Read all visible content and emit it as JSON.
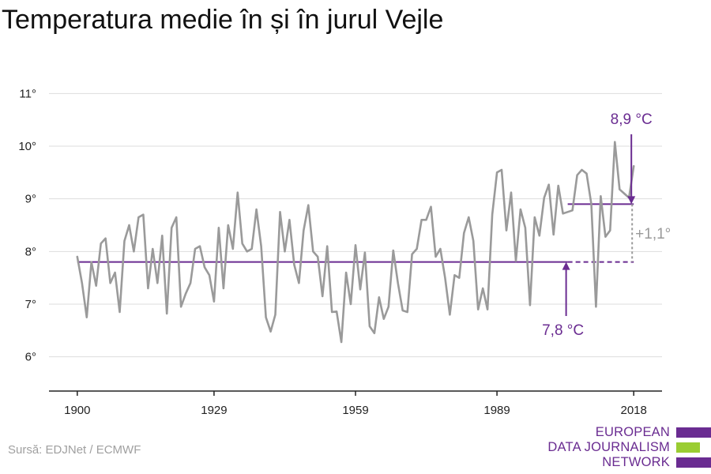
{
  "title": "Temperatura medie în și în jurul Vejle",
  "source": "Sursă: EDJNet / ECMWF",
  "logo": {
    "line1": "EUROPEAN",
    "line2": "DATA JOURNALISM",
    "line3": "NETWORK",
    "colors": [
      "#6a2c91",
      "#9acd32",
      "#6a2c91"
    ]
  },
  "colors": {
    "series": "#9a9a9a",
    "accent": "#6a2c91",
    "grid": "#dddddd",
    "difference": "#9a9a9a"
  },
  "chart_data": {
    "type": "line",
    "title": "Temperatura medie în și în jurul Vejle",
    "x_tick_labels": [
      "1900",
      "1929",
      "1959",
      "1989",
      "2018"
    ],
    "x_ticks": [
      1900,
      1929,
      1959,
      1989,
      2018
    ],
    "y_tick_labels": [
      "6°",
      "7°",
      "8°",
      "9°",
      "10°",
      "11°"
    ],
    "y_ticks": [
      6,
      7,
      8,
      9,
      10,
      11
    ],
    "xlim": [
      1894,
      2024
    ],
    "ylim": [
      5.35,
      11.2
    ],
    "grid": true,
    "series": [
      {
        "x_start": 1900,
        "x_end": 2018,
        "values": [
          7.9,
          7.4,
          6.75,
          7.8,
          7.35,
          8.15,
          8.25,
          7.4,
          7.6,
          6.85,
          8.2,
          8.5,
          8.0,
          8.65,
          8.7,
          7.3,
          8.05,
          7.4,
          8.3,
          6.82,
          8.45,
          8.65,
          6.95,
          7.2,
          7.4,
          8.05,
          8.1,
          7.7,
          7.55,
          7.05,
          8.45,
          7.3,
          8.5,
          8.05,
          9.12,
          8.15,
          8.0,
          8.05,
          8.8,
          8.1,
          6.75,
          6.48,
          6.8,
          8.75,
          8.0,
          8.6,
          7.75,
          7.4,
          8.4,
          8.88,
          8.0,
          7.9,
          7.15,
          8.1,
          6.85,
          6.86,
          6.28,
          7.6,
          7.0,
          8.12,
          7.28,
          7.98,
          6.58,
          6.45,
          7.13,
          6.72,
          6.95,
          8.02,
          7.4,
          6.88,
          6.85,
          7.95,
          8.05,
          8.6,
          8.6,
          8.85,
          7.9,
          8.05,
          7.5,
          6.8,
          7.55,
          7.5,
          8.35,
          8.65,
          8.2,
          6.9,
          7.3,
          6.9,
          8.7,
          9.5,
          9.55,
          8.4,
          9.12,
          7.82,
          8.8,
          8.45,
          6.98,
          8.65,
          8.3,
          9.02,
          9.27,
          8.32,
          9.25,
          8.72,
          8.75,
          8.78,
          9.45,
          9.55,
          9.48,
          8.9,
          6.95,
          9.05,
          8.28,
          8.4,
          10.08,
          9.18,
          9.1,
          9.02,
          9.62
        ]
      }
    ],
    "reference_lines": [
      {
        "label": "7,8 °C",
        "value": 7.8,
        "x_start": 1900,
        "x_end": 2018,
        "solid_until": 2004
      },
      {
        "label": "8,9 °C",
        "value": 8.9,
        "x_start": 2004,
        "x_end": 2018
      }
    ],
    "difference_label": "+1,1°"
  }
}
